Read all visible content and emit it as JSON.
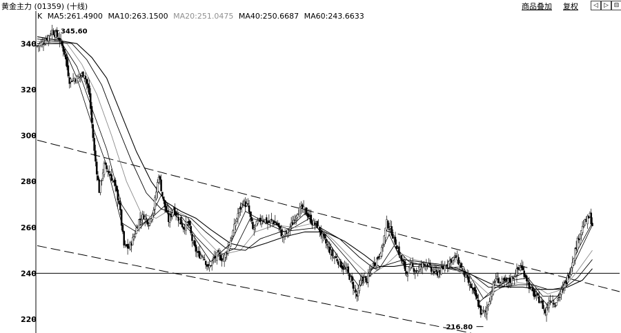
{
  "header": {
    "title": "黄金主力 (01359) (十线)",
    "multi_overlay_label": "商品叠加",
    "restore_label": "复权",
    "nav_prev": "◁",
    "nav_next": "▷",
    "nav_close": "⊟"
  },
  "legend": {
    "k": "K",
    "ma5": "MA5:261.4900",
    "ma10": "MA10:263.1500",
    "ma20": "MA20:251.0475",
    "ma40": "MA40:250.6687",
    "ma60": "MA60:243.6633"
  },
  "chart_data": {
    "type": "line",
    "series_kind": "candlestick with moving averages and trend channel",
    "y_ticks": [
      "340",
      "320",
      "300",
      "280",
      "260",
      "240",
      "220"
    ],
    "ylim": [
      214,
      350
    ],
    "grid": false,
    "annotations": [
      {
        "label": "345.60",
        "value": 345.6
      },
      {
        "label": "216.80",
        "value": 216.8
      }
    ],
    "horizontal_line": 240,
    "price_path": [
      [
        0,
        339
      ],
      [
        3,
        341
      ],
      [
        6,
        345.6
      ],
      [
        9,
        342
      ],
      [
        11,
        336
      ],
      [
        13,
        324
      ],
      [
        16,
        325
      ],
      [
        19,
        327
      ],
      [
        21,
        318
      ],
      [
        23,
        293
      ],
      [
        25,
        276
      ],
      [
        27,
        287
      ],
      [
        29,
        284
      ],
      [
        31,
        279
      ],
      [
        33,
        271
      ],
      [
        35,
        252
      ],
      [
        37,
        251
      ],
      [
        39,
        256
      ],
      [
        41,
        263
      ],
      [
        43,
        265
      ],
      [
        45,
        262
      ],
      [
        47,
        268
      ],
      [
        49,
        283
      ],
      [
        51,
        271
      ],
      [
        53,
        263
      ],
      [
        55,
        268
      ],
      [
        57,
        264
      ],
      [
        59,
        260
      ],
      [
        61,
        262
      ],
      [
        63,
        252
      ],
      [
        65,
        248
      ],
      [
        67,
        248
      ],
      [
        69,
        242
      ],
      [
        71,
        246
      ],
      [
        73,
        248
      ],
      [
        75,
        246
      ],
      [
        77,
        251
      ],
      [
        79,
        258
      ],
      [
        81,
        266
      ],
      [
        83,
        271
      ],
      [
        85,
        269
      ],
      [
        87,
        259
      ],
      [
        89,
        262
      ],
      [
        91,
        264
      ],
      [
        93,
        262
      ],
      [
        95,
        263
      ],
      [
        97,
        261
      ],
      [
        99,
        256
      ],
      [
        101,
        258
      ],
      [
        103,
        262
      ],
      [
        105,
        267
      ],
      [
        107,
        268
      ],
      [
        109,
        266
      ],
      [
        111,
        262
      ],
      [
        113,
        261
      ],
      [
        115,
        256
      ],
      [
        117,
        252
      ],
      [
        119,
        248
      ],
      [
        121,
        246
      ],
      [
        123,
        243
      ],
      [
        125,
        241
      ],
      [
        127,
        236
      ],
      [
        129,
        230
      ],
      [
        131,
        238
      ],
      [
        133,
        237
      ],
      [
        135,
        243
      ],
      [
        137,
        246
      ],
      [
        139,
        250
      ],
      [
        141,
        262
      ],
      [
        143,
        258
      ],
      [
        145,
        252
      ],
      [
        147,
        246
      ],
      [
        149,
        240
      ],
      [
        151,
        243
      ],
      [
        153,
        241
      ],
      [
        155,
        243
      ],
      [
        157,
        245
      ],
      [
        159,
        241
      ],
      [
        161,
        240
      ],
      [
        163,
        241
      ],
      [
        165,
        244
      ],
      [
        167,
        246
      ],
      [
        169,
        247
      ],
      [
        171,
        243
      ],
      [
        173,
        238
      ],
      [
        175,
        234
      ],
      [
        177,
        230
      ],
      [
        179,
        223
      ],
      [
        181,
        223
      ],
      [
        183,
        231
      ],
      [
        185,
        238
      ],
      [
        187,
        236
      ],
      [
        189,
        236
      ],
      [
        191,
        237
      ],
      [
        193,
        240
      ],
      [
        195,
        243
      ],
      [
        197,
        239
      ],
      [
        199,
        233
      ],
      [
        201,
        230
      ],
      [
        203,
        228
      ],
      [
        205,
        223
      ],
      [
        207,
        229
      ],
      [
        209,
        227
      ],
      [
        211,
        231
      ],
      [
        213,
        235
      ],
      [
        215,
        241
      ],
      [
        217,
        250
      ],
      [
        219,
        258
      ],
      [
        221,
        262
      ],
      [
        223,
        265
      ],
      [
        224,
        261
      ]
    ],
    "moving_averages": [
      {
        "name": "MA5",
        "path": [
          [
            0,
            340
          ],
          [
            10,
            340
          ],
          [
            16,
            325
          ],
          [
            22,
            305
          ],
          [
            28,
            287
          ],
          [
            34,
            262
          ],
          [
            40,
            258
          ],
          [
            46,
            265
          ],
          [
            50,
            274
          ],
          [
            56,
            265
          ],
          [
            62,
            258
          ],
          [
            70,
            245
          ],
          [
            78,
            253
          ],
          [
            84,
            267
          ],
          [
            92,
            262
          ],
          [
            100,
            258
          ],
          [
            108,
            266
          ],
          [
            116,
            256
          ],
          [
            124,
            243
          ],
          [
            130,
            234
          ],
          [
            136,
            243
          ],
          [
            142,
            257
          ],
          [
            148,
            243
          ],
          [
            156,
            243
          ],
          [
            164,
            242
          ],
          [
            172,
            243
          ],
          [
            178,
            227
          ],
          [
            184,
            233
          ],
          [
            190,
            237
          ],
          [
            196,
            240
          ],
          [
            202,
            231
          ],
          [
            206,
            226
          ],
          [
            212,
            232
          ],
          [
            218,
            250
          ],
          [
            224,
            262
          ]
        ]
      },
      {
        "name": "MA10",
        "path": [
          [
            0,
            340
          ],
          [
            10,
            340
          ],
          [
            16,
            330
          ],
          [
            22,
            312
          ],
          [
            28,
            294
          ],
          [
            34,
            270
          ],
          [
            40,
            260
          ],
          [
            46,
            264
          ],
          [
            52,
            270
          ],
          [
            58,
            265
          ],
          [
            64,
            256
          ],
          [
            72,
            247
          ],
          [
            80,
            251
          ],
          [
            86,
            264
          ],
          [
            94,
            262
          ],
          [
            102,
            259
          ],
          [
            110,
            264
          ],
          [
            118,
            255
          ],
          [
            126,
            245
          ],
          [
            132,
            237
          ],
          [
            138,
            242
          ],
          [
            144,
            252
          ],
          [
            150,
            245
          ],
          [
            158,
            243
          ],
          [
            166,
            242
          ],
          [
            174,
            240
          ],
          [
            180,
            229
          ],
          [
            186,
            233
          ],
          [
            192,
            237
          ],
          [
            198,
            238
          ],
          [
            204,
            230
          ],
          [
            210,
            230
          ],
          [
            216,
            243
          ],
          [
            224,
            261
          ]
        ]
      },
      {
        "name": "MA20",
        "path": [
          [
            0,
            341
          ],
          [
            12,
            340
          ],
          [
            18,
            331
          ],
          [
            24,
            318
          ],
          [
            30,
            300
          ],
          [
            36,
            280
          ],
          [
            42,
            266
          ],
          [
            48,
            264
          ],
          [
            54,
            268
          ],
          [
            60,
            265
          ],
          [
            66,
            257
          ],
          [
            74,
            248
          ],
          [
            82,
            250
          ],
          [
            88,
            258
          ],
          [
            96,
            261
          ],
          [
            104,
            260
          ],
          [
            112,
            262
          ],
          [
            120,
            254
          ],
          [
            128,
            245
          ],
          [
            134,
            239
          ],
          [
            140,
            243
          ],
          [
            146,
            249
          ],
          [
            152,
            246
          ],
          [
            160,
            244
          ],
          [
            168,
            242
          ],
          [
            176,
            237
          ],
          [
            182,
            231
          ],
          [
            188,
            234
          ],
          [
            194,
            236
          ],
          [
            200,
            235
          ],
          [
            206,
            231
          ],
          [
            212,
            233
          ],
          [
            218,
            241
          ],
          [
            224,
            250
          ]
        ]
      },
      {
        "name": "MA40",
        "path": [
          [
            0,
            342
          ],
          [
            14,
            340
          ],
          [
            20,
            333
          ],
          [
            26,
            322
          ],
          [
            32,
            305
          ],
          [
            38,
            289
          ],
          [
            44,
            275
          ],
          [
            50,
            268
          ],
          [
            56,
            266
          ],
          [
            62,
            264
          ],
          [
            68,
            258
          ],
          [
            76,
            251
          ],
          [
            84,
            250
          ],
          [
            90,
            255
          ],
          [
            98,
            258
          ],
          [
            106,
            259
          ],
          [
            114,
            260
          ],
          [
            122,
            255
          ],
          [
            130,
            247
          ],
          [
            136,
            242
          ],
          [
            142,
            244
          ],
          [
            148,
            246
          ],
          [
            154,
            245
          ],
          [
            162,
            244
          ],
          [
            170,
            242
          ],
          [
            176,
            239
          ],
          [
            182,
            234
          ],
          [
            188,
            234
          ],
          [
            194,
            235
          ],
          [
            200,
            235
          ],
          [
            206,
            233
          ],
          [
            212,
            233
          ],
          [
            218,
            238
          ],
          [
            224,
            246
          ]
        ]
      },
      {
        "name": "MA60",
        "path": [
          [
            0,
            343
          ],
          [
            16,
            340
          ],
          [
            22,
            334
          ],
          [
            28,
            325
          ],
          [
            34,
            309
          ],
          [
            40,
            293
          ],
          [
            46,
            280
          ],
          [
            52,
            271
          ],
          [
            58,
            267
          ],
          [
            64,
            264
          ],
          [
            70,
            259
          ],
          [
            78,
            253
          ],
          [
            86,
            251
          ],
          [
            92,
            253
          ],
          [
            100,
            256
          ],
          [
            108,
            258
          ],
          [
            116,
            258
          ],
          [
            124,
            254
          ],
          [
            132,
            248
          ],
          [
            138,
            243
          ],
          [
            144,
            243
          ],
          [
            150,
            244
          ],
          [
            156,
            244
          ],
          [
            164,
            243
          ],
          [
            172,
            241
          ],
          [
            178,
            238
          ],
          [
            184,
            235
          ],
          [
            190,
            234
          ],
          [
            196,
            234
          ],
          [
            202,
            233
          ],
          [
            208,
            233
          ],
          [
            214,
            234
          ],
          [
            220,
            237
          ],
          [
            224,
            242
          ]
        ]
      }
    ],
    "trend_lines": [
      {
        "name": "upper-channel",
        "from": [
          0,
          298
        ],
        "to": [
          235,
          232
        ]
      },
      {
        "name": "lower-channel",
        "from": [
          0,
          252
        ],
        "to": [
          175,
          214
        ]
      }
    ]
  }
}
